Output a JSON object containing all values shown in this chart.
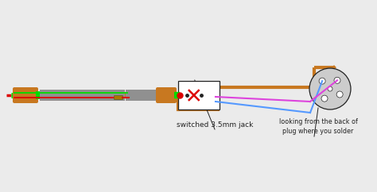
{
  "bg_color": "#ebebeb",
  "label_switched": "switched 3.5mm jack",
  "label_looking": "looking from the back of\nplug where you solder",
  "brown": "#c87820",
  "green": "#00dd00",
  "red": "#dd0000",
  "gray": "#909090",
  "blue": "#5599ff",
  "magenta": "#dd44dd",
  "dark": "#222222",
  "white": "#ffffff",
  "copper": "#c87820"
}
